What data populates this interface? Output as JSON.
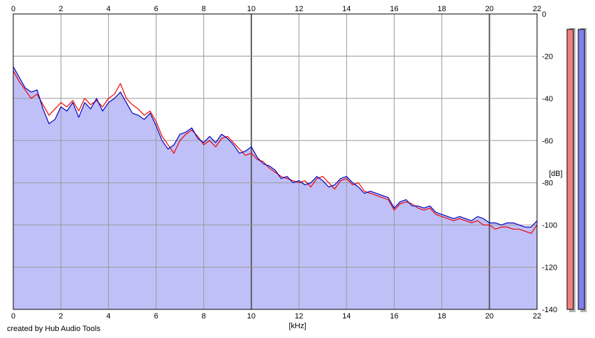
{
  "chart_data": {
    "type": "area",
    "xlabel": "[kHz]",
    "ylabel": "[dB]",
    "xlim": [
      0,
      22
    ],
    "ylim": [
      -140,
      0
    ],
    "x_ticks": [
      "0",
      "2",
      "4",
      "6",
      "8",
      "10",
      "12",
      "14",
      "16",
      "18",
      "20",
      "22"
    ],
    "y_ticks": [
      "0",
      "-20",
      "-40",
      "-60",
      "-80",
      "-100",
      "-120",
      "-140"
    ],
    "grid": true,
    "series": [
      {
        "color": "#ee0000",
        "x": [
          0,
          0.25,
          0.5,
          0.75,
          1,
          1.25,
          1.5,
          1.75,
          2,
          2.25,
          2.5,
          2.75,
          3,
          3.25,
          3.5,
          3.75,
          4,
          4.25,
          4.5,
          4.75,
          5,
          5.25,
          5.5,
          5.75,
          6,
          6.25,
          6.5,
          6.75,
          7,
          7.25,
          7.5,
          7.75,
          8,
          8.25,
          8.5,
          8.75,
          9,
          9.25,
          9.5,
          9.75,
          10,
          10.25,
          10.5,
          10.75,
          11,
          11.25,
          11.5,
          11.75,
          12,
          12.25,
          12.5,
          12.75,
          13,
          13.25,
          13.5,
          13.75,
          14,
          14.25,
          14.5,
          14.75,
          15,
          15.25,
          15.5,
          15.75,
          16,
          16.25,
          16.5,
          16.75,
          17,
          17.25,
          17.5,
          17.75,
          18,
          18.25,
          18.5,
          18.75,
          19,
          19.25,
          19.5,
          19.75,
          20,
          20.25,
          20.5,
          20.75,
          21,
          21.25,
          21.5,
          21.75,
          22
        ],
        "values": [
          -27,
          -32,
          -36,
          -40,
          -38,
          -43,
          -48,
          -45,
          -42,
          -44,
          -41,
          -46,
          -40,
          -43,
          -41,
          -44,
          -40,
          -38,
          -33,
          -40,
          -43,
          -45,
          -48,
          -46,
          -51,
          -58,
          -62,
          -66,
          -60,
          -57,
          -55,
          -58,
          -62,
          -60,
          -63,
          -59,
          -58,
          -61,
          -64,
          -67,
          -66,
          -69,
          -70,
          -73,
          -75,
          -77,
          -78,
          -79,
          -80,
          -79,
          -82,
          -78,
          -77,
          -80,
          -83,
          -79,
          -78,
          -81,
          -80,
          -84,
          -85,
          -86,
          -87,
          -88,
          -93,
          -90,
          -89,
          -90,
          -92,
          -93,
          -92,
          -95,
          -96,
          -97,
          -98,
          -97,
          -98,
          -99,
          -98,
          -100,
          -100,
          -102,
          -101,
          -101,
          -102,
          -102,
          -103,
          -104,
          -100
        ]
      },
      {
        "color": "#0000bb",
        "x": [
          0,
          0.25,
          0.5,
          0.75,
          1,
          1.25,
          1.5,
          1.75,
          2,
          2.25,
          2.5,
          2.75,
          3,
          3.25,
          3.5,
          3.75,
          4,
          4.25,
          4.5,
          4.75,
          5,
          5.25,
          5.5,
          5.75,
          6,
          6.25,
          6.5,
          6.75,
          7,
          7.25,
          7.5,
          7.75,
          8,
          8.25,
          8.5,
          8.75,
          9,
          9.25,
          9.5,
          9.75,
          10,
          10.25,
          10.5,
          10.75,
          11,
          11.25,
          11.5,
          11.75,
          12,
          12.25,
          12.5,
          12.75,
          13,
          13.25,
          13.5,
          13.75,
          14,
          14.25,
          14.5,
          14.75,
          15,
          15.25,
          15.5,
          15.75,
          16,
          16.25,
          16.5,
          16.75,
          17,
          17.25,
          17.5,
          17.75,
          18,
          18.25,
          18.5,
          18.75,
          19,
          19.25,
          19.5,
          19.75,
          20,
          20.25,
          20.5,
          20.75,
          21,
          21.25,
          21.5,
          21.75,
          22
        ],
        "values": [
          -25,
          -30,
          -35,
          -37,
          -36,
          -45,
          -52,
          -50,
          -44,
          -46,
          -42,
          -49,
          -42,
          -45,
          -40,
          -46,
          -42,
          -40,
          -37,
          -42,
          -47,
          -48,
          -50,
          -47,
          -53,
          -60,
          -64,
          -62,
          -57,
          -56,
          -54,
          -59,
          -61,
          -58,
          -61,
          -57,
          -59,
          -62,
          -66,
          -65,
          -63,
          -68,
          -71,
          -72,
          -74,
          -78,
          -77,
          -80,
          -79,
          -81,
          -80,
          -77,
          -79,
          -82,
          -81,
          -78,
          -77,
          -80,
          -82,
          -85,
          -84,
          -85,
          -86,
          -87,
          -92,
          -89,
          -88,
          -91,
          -91,
          -92,
          -91,
          -94,
          -95,
          -96,
          -97,
          -96,
          -97,
          -98,
          -96,
          -97,
          -99,
          -99,
          -100,
          -99,
          -99,
          -100,
          -101,
          -101,
          -98
        ]
      }
    ],
    "meters": [
      {
        "color": "#f08080",
        "level": -2
      },
      {
        "color": "#8080f0",
        "level": -2
      }
    ]
  },
  "footer": {
    "credit": "created by Hub Audio Tools"
  }
}
